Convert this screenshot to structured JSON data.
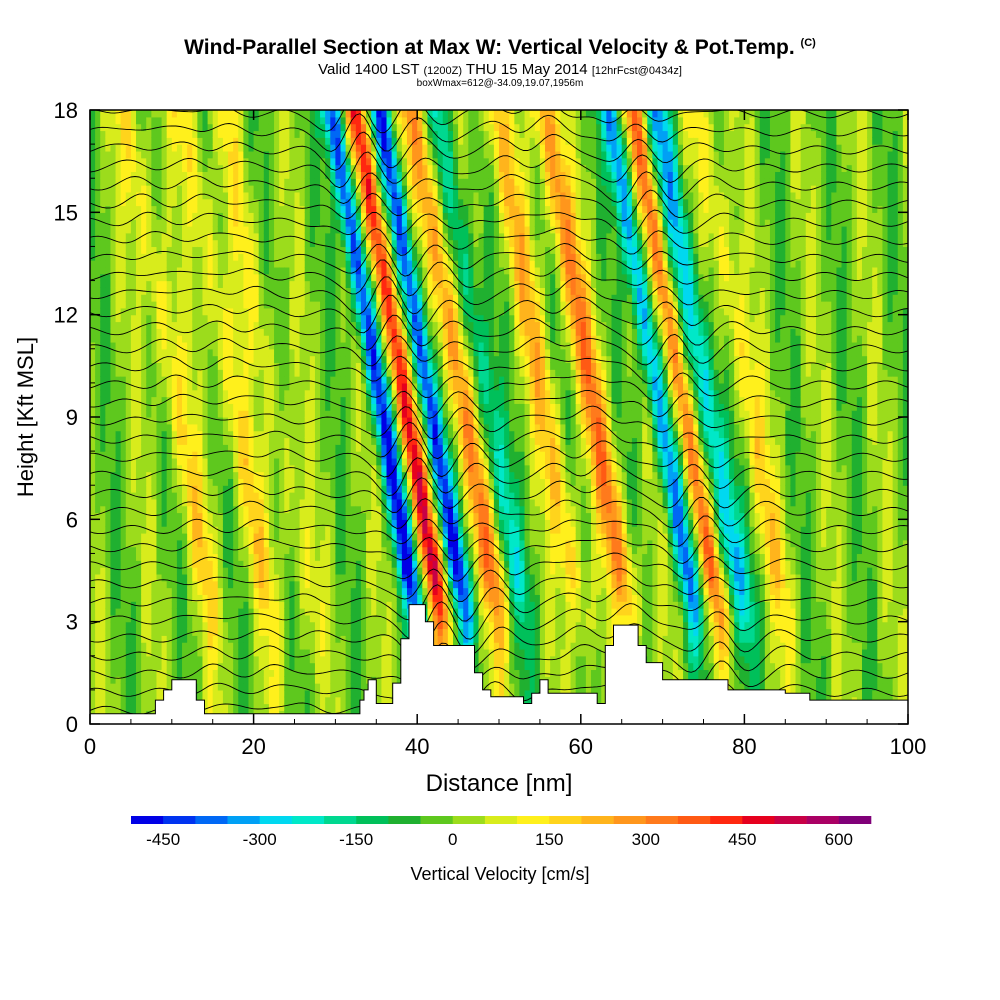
{
  "title": "Wind-Parallel Section at Max W: Vertical Velocity & Pot.Temp.",
  "title_mark": "(C)",
  "subtitle": {
    "part1": "Valid 1400 LST",
    "part2": "(1200Z)",
    "part3": "THU 15 May 2014",
    "part4": "[12hrFcst@0434z]"
  },
  "subtitle2": "boxWmax=612@-34.09,19.07,1956m",
  "chart_data": {
    "type": "heatmap",
    "xlabel": "Distance [nm]",
    "ylabel": "Height [Kft MSL]",
    "xlim": [
      0,
      100
    ],
    "ylim": [
      0,
      18
    ],
    "xticks": [
      "0",
      "20",
      "40",
      "60",
      "80",
      "100"
    ],
    "yticks": [
      "0",
      "3",
      "6",
      "9",
      "12",
      "15",
      "18"
    ],
    "colorbar": {
      "label": "Vertical Velocity [cm/s]",
      "tick_labels": [
        "-450",
        "-300",
        "-150",
        "0",
        "150",
        "300",
        "450",
        "600"
      ],
      "tick_values": [
        -450,
        -300,
        -150,
        0,
        150,
        300,
        450,
        600
      ],
      "range": [
        -500,
        650
      ],
      "colors": [
        "#0000e6",
        "#0033f0",
        "#0068f5",
        "#00a0f5",
        "#00d8f0",
        "#00e8c8",
        "#00d890",
        "#00c05a",
        "#20b030",
        "#5ec81e",
        "#9cdc1c",
        "#d8ec1c",
        "#fff01c",
        "#ffd41c",
        "#ffb41c",
        "#ff961c",
        "#ff7a1c",
        "#ff5a14",
        "#ff2810",
        "#e6001e",
        "#c80046",
        "#aa0064",
        "#800078"
      ]
    },
    "updrafts": [
      {
        "x": 15,
        "peak_cm_s": 150
      },
      {
        "x": 22,
        "peak_cm_s": 150
      },
      {
        "x": 27,
        "peak_cm_s": 100
      },
      {
        "x": 43,
        "peak_cm_s": 480
      },
      {
        "x": 50,
        "peak_cm_s": 300
      },
      {
        "x": 60,
        "peak_cm_s": 200
      },
      {
        "x": 66,
        "peak_cm_s": 300
      },
      {
        "x": 77,
        "peak_cm_s": 350
      },
      {
        "x": 85,
        "peak_cm_s": 150
      }
    ],
    "downdrafts": [
      {
        "x": 40,
        "peak_cm_s": -450
      },
      {
        "x": 46,
        "peak_cm_s": -450
      },
      {
        "x": 53,
        "peak_cm_s": -200
      },
      {
        "x": 74,
        "peak_cm_s": -350
      },
      {
        "x": 80,
        "peak_cm_s": -300
      }
    ],
    "terrain_kft": [
      [
        0,
        0.3
      ],
      [
        7,
        0.3
      ],
      [
        8,
        0.7
      ],
      [
        9,
        1.0
      ],
      [
        10,
        1.3
      ],
      [
        12,
        1.3
      ],
      [
        13,
        0.7
      ],
      [
        14,
        0.3
      ],
      [
        32,
        0.3
      ],
      [
        33,
        0.7
      ],
      [
        33.5,
        1.0
      ],
      [
        34,
        1.3
      ],
      [
        35,
        0.6
      ],
      [
        36,
        0.6
      ],
      [
        37,
        1.2
      ],
      [
        38,
        2.5
      ],
      [
        39,
        3.5
      ],
      [
        40,
        3.5
      ],
      [
        41,
        3.0
      ],
      [
        42,
        2.3
      ],
      [
        46,
        2.3
      ],
      [
        47,
        1.5
      ],
      [
        48,
        1.0
      ],
      [
        49,
        0.8
      ],
      [
        53,
        0.6
      ],
      [
        54,
        0.9
      ],
      [
        55,
        1.3
      ],
      [
        56,
        0.9
      ],
      [
        58,
        0.9
      ],
      [
        62,
        0.6
      ],
      [
        63,
        2.3
      ],
      [
        64,
        2.9
      ],
      [
        66,
        2.9
      ],
      [
        67,
        2.3
      ],
      [
        68,
        1.8
      ],
      [
        70,
        1.3
      ],
      [
        71,
        1.3
      ],
      [
        76,
        1.3
      ],
      [
        78,
        1.0
      ],
      [
        81,
        1.0
      ],
      [
        85,
        0.9
      ],
      [
        88,
        0.7
      ],
      [
        90,
        0.7
      ],
      [
        100,
        0.7
      ]
    ]
  }
}
